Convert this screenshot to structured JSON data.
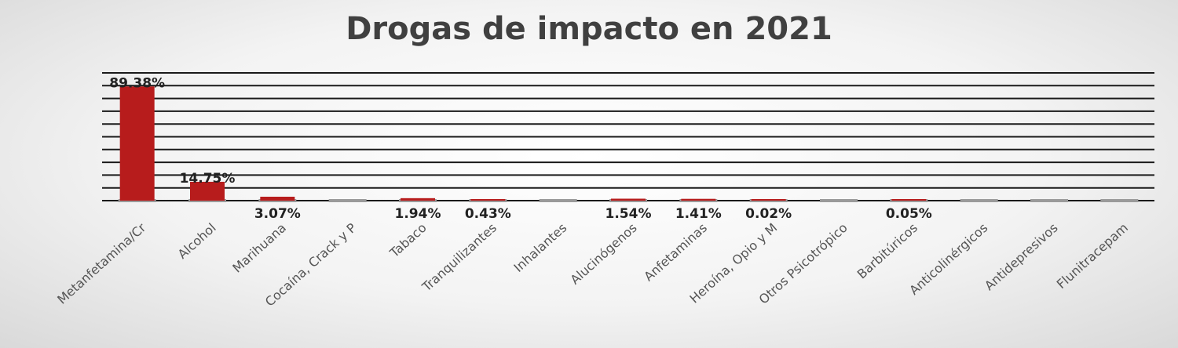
{
  "chart_data": {
    "type": "bar",
    "title": "Drogas de impacto en 2021",
    "xlabel": "",
    "ylabel": "",
    "ylim": [
      0,
      100
    ],
    "grid": true,
    "legend": "none",
    "categories": [
      "Metanfetamina/Cr",
      "Alcohol",
      "Marihuana",
      "Cocaína, Crack y P",
      "Tabaco",
      "Tranquilizantes",
      "Inhalantes",
      "Alucinógenos",
      "Anfetaminas",
      "Heroína, Opio y M",
      "Otros Psicotrópico",
      "Barbitúricos",
      "Anticolinérgicos",
      "Antidepresivos",
      "Flunitracepam"
    ],
    "values": [
      89.38,
      14.75,
      3.07,
      0,
      1.94,
      0.43,
      0,
      1.54,
      1.41,
      0.02,
      0,
      0.05,
      0,
      0,
      0
    ],
    "data_labels": [
      "89.38%",
      "14.75%",
      "3.07%",
      "",
      "1.94%",
      "0.43%",
      "",
      "1.54%",
      "1.41%",
      "0.02%",
      "",
      "0.05%",
      "",
      "",
      ""
    ],
    "colors": {
      "bar": "#b71c1c",
      "grid": "#1a1a1a",
      "baseline_segment": "#9a9a9a"
    }
  }
}
